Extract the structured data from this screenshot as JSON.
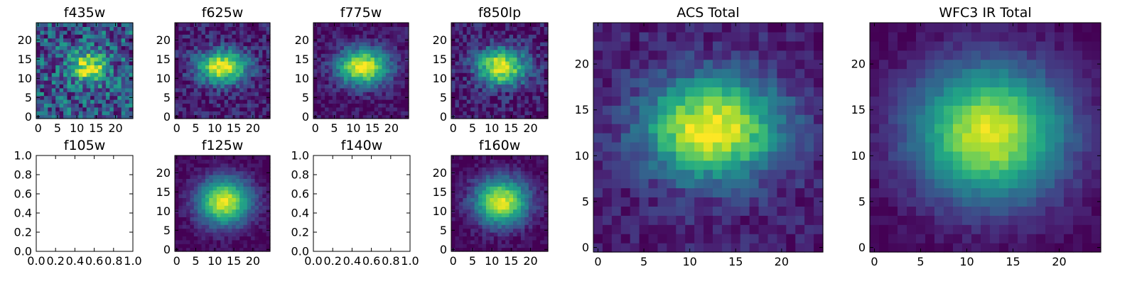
{
  "figure": {
    "colormap": "viridis",
    "empty_panel_ticks": [
      "0.0",
      "0.2",
      "0.4",
      "0.6",
      "0.8",
      "1.0"
    ]
  },
  "chart_data": [
    {
      "type": "heatmap",
      "title": "f435w",
      "xlim": [
        -0.5,
        24.5
      ],
      "ylim": [
        -0.5,
        24.5
      ],
      "xticks": [
        0,
        5,
        10,
        15,
        20
      ],
      "yticks": [
        0,
        5,
        10,
        15,
        20
      ],
      "grid_size": 25,
      "center": [
        13,
        13
      ],
      "widths": [
        3.2,
        2.6
      ],
      "peak": 0.72,
      "noise": 0.28,
      "floor": 0.28,
      "seed": 11,
      "empty": false
    },
    {
      "type": "heatmap",
      "title": "f625w",
      "xlim": [
        -0.5,
        24.5
      ],
      "ylim": [
        -0.5,
        24.5
      ],
      "xticks": [
        0,
        5,
        10,
        15,
        20
      ],
      "yticks": [
        0,
        5,
        10,
        15,
        20
      ],
      "grid_size": 25,
      "center": [
        12,
        13
      ],
      "widths": [
        4.5,
        3.0
      ],
      "peak": 0.92,
      "noise": 0.15,
      "floor": 0.08,
      "seed": 23,
      "empty": false
    },
    {
      "type": "heatmap",
      "title": "f775w",
      "xlim": [
        -0.5,
        24.5
      ],
      "ylim": [
        -0.5,
        24.5
      ],
      "xticks": [
        0,
        5,
        10,
        15,
        20
      ],
      "yticks": [
        0,
        5,
        10,
        15,
        20
      ],
      "grid_size": 25,
      "center": [
        12.5,
        13
      ],
      "widths": [
        4.8,
        3.4
      ],
      "peak": 0.95,
      "noise": 0.11,
      "floor": 0.04,
      "seed": 37,
      "empty": false
    },
    {
      "type": "heatmap",
      "title": "f850lp",
      "xlim": [
        -0.5,
        24.5
      ],
      "ylim": [
        -0.5,
        24.5
      ],
      "xticks": [
        0,
        5,
        10,
        15,
        20
      ],
      "yticks": [
        0,
        5,
        10,
        15,
        20
      ],
      "grid_size": 25,
      "center": [
        12.5,
        13
      ],
      "widths": [
        4.5,
        3.4
      ],
      "peak": 0.92,
      "noise": 0.16,
      "floor": 0.06,
      "seed": 41,
      "empty": false
    },
    {
      "type": "heatmap",
      "title": "f105w",
      "xlim": [
        0.0,
        1.0
      ],
      "ylim": [
        0.0,
        1.0
      ],
      "xticks": [],
      "yticks": [],
      "empty": true
    },
    {
      "type": "heatmap",
      "title": "f125w",
      "xlim": [
        -0.5,
        24.5
      ],
      "ylim": [
        -0.5,
        24.5
      ],
      "xticks": [
        0,
        5,
        10,
        15,
        20
      ],
      "yticks": [
        0,
        5,
        10,
        15,
        20
      ],
      "grid_size": 25,
      "center": [
        12.5,
        12.5
      ],
      "widths": [
        5.0,
        4.4
      ],
      "peak": 0.95,
      "noise": 0.07,
      "floor": 0.0,
      "seed": 53,
      "empty": false
    },
    {
      "type": "heatmap",
      "title": "f140w",
      "xlim": [
        0.0,
        1.0
      ],
      "ylim": [
        0.0,
        1.0
      ],
      "xticks": [],
      "yticks": [],
      "empty": true
    },
    {
      "type": "heatmap",
      "title": "f160w",
      "xlim": [
        -0.5,
        24.5
      ],
      "ylim": [
        -0.5,
        24.5
      ],
      "xticks": [
        0,
        5,
        10,
        15,
        20
      ],
      "yticks": [
        0,
        5,
        10,
        15,
        20
      ],
      "grid_size": 25,
      "center": [
        12.5,
        12.5
      ],
      "widths": [
        5.0,
        4.4
      ],
      "peak": 0.95,
      "noise": 0.08,
      "floor": 0.0,
      "seed": 67,
      "empty": false
    },
    {
      "type": "heatmap",
      "title": "ACS Total",
      "xlim": [
        -0.5,
        24.5
      ],
      "ylim": [
        -0.5,
        24.5
      ],
      "xticks": [
        0,
        5,
        10,
        15,
        20
      ],
      "yticks": [
        0,
        5,
        10,
        15,
        20
      ],
      "grid_size": 25,
      "center": [
        12.5,
        13
      ],
      "widths": [
        5.2,
        3.8
      ],
      "peak": 0.93,
      "noise": 0.1,
      "floor": 0.08,
      "seed": 71,
      "empty": false
    },
    {
      "type": "heatmap",
      "title": "WFC3 IR Total",
      "xlim": [
        -0.5,
        24.5
      ],
      "ylim": [
        -0.5,
        24.5
      ],
      "xticks": [
        0,
        5,
        10,
        15,
        20
      ],
      "yticks": [
        0,
        5,
        10,
        15,
        20
      ],
      "grid_size": 25,
      "center": [
        12.5,
        12.5
      ],
      "widths": [
        5.8,
        5.2
      ],
      "peak": 0.95,
      "noise": 0.05,
      "floor": 0.0,
      "seed": 83,
      "empty": false
    }
  ]
}
